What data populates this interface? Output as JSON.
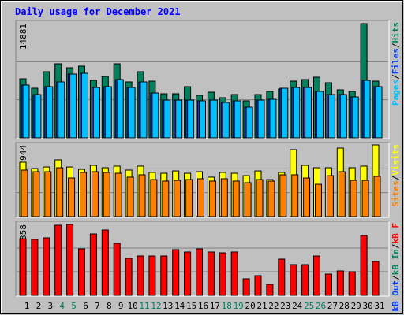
{
  "chart_data": [
    {
      "type": "bar",
      "title": "Daily usage for December 2021",
      "ylim": [
        0,
        14881
      ],
      "yticks": [
        14881
      ],
      "legend_separator": "/",
      "series": [
        {
          "name": "Hits",
          "color": "#00805c",
          "values": [
            7697,
            6465,
            8620,
            9647,
            9134,
            9339,
            7492,
            8005,
            9647,
            7287,
            8620,
            7389,
            5747,
            5747,
            6671,
            5542,
            5952,
            5234,
            5645,
            4823,
            5645,
            6055,
            6363,
            7389,
            7594,
            7902,
            7184,
            6260,
            6055,
            14881,
            7389
          ]
        },
        {
          "name": "Files",
          "color": "#0040ff",
          "values": [
            6874,
            5643,
            6669,
            7285,
            8311,
            8413,
            6566,
            6669,
            7592,
            6566,
            7285,
            5848,
            4925,
            4925,
            4925,
            4823,
            4925,
            4617,
            4823,
            4002,
            4925,
            5027,
            6464,
            6566,
            6566,
            6053,
            5643,
            5643,
            5335,
            7490,
            6669
          ]
        },
        {
          "name": "Pages",
          "color": "#00c0ff",
          "values": [
            6874,
            5643,
            6669,
            7285,
            8311,
            8413,
            6566,
            6669,
            7592,
            6566,
            7285,
            5848,
            4925,
            4925,
            4925,
            4823,
            4925,
            4617,
            4823,
            4002,
            4925,
            5027,
            6464,
            6566,
            6566,
            6053,
            5643,
            5643,
            5335,
            7490,
            6669
          ]
        }
      ]
    },
    {
      "type": "bar",
      "ylim": [
        0,
        944
      ],
      "yticks": [
        944
      ],
      "legend_separator": "/",
      "series": [
        {
          "name": "Visits",
          "color": "#ffff00",
          "values": [
            716,
            633,
            653,
            747,
            653,
            622,
            674,
            643,
            664,
            612,
            664,
            581,
            570,
            601,
            570,
            591,
            519,
            581,
            570,
            539,
            601,
            487,
            581,
            882,
            674,
            643,
            643,
            902,
            643,
            664,
            944
          ]
        },
        {
          "name": "Sites",
          "color": "#ff8000",
          "values": [
            612,
            591,
            591,
            643,
            508,
            581,
            591,
            581,
            570,
            519,
            550,
            487,
            467,
            477,
            487,
            498,
            467,
            498,
            467,
            446,
            487,
            467,
            550,
            550,
            508,
            425,
            539,
            591,
            477,
            477,
            529
          ]
        }
      ]
    },
    {
      "type": "bar",
      "ylim": [
        0,
        145358
      ],
      "yticks": [
        145358
      ],
      "legend_separator": "/",
      "categories": [
        "1",
        "2",
        "3",
        "4",
        "5",
        "6",
        "7",
        "8",
        "9",
        "10",
        "11",
        "12",
        "13",
        "14",
        "15",
        "16",
        "17",
        "18",
        "19",
        "20",
        "21",
        "22",
        "23",
        "24",
        "25",
        "26",
        "27",
        "28",
        "29",
        "30",
        "31"
      ],
      "category_colors": [
        "#000000",
        "#000000",
        "#000000",
        "#00805c",
        "#00805c",
        "#000000",
        "#000000",
        "#000000",
        "#000000",
        "#000000",
        "#00805c",
        "#00805c",
        "#000000",
        "#000000",
        "#000000",
        "#000000",
        "#000000",
        "#00805c",
        "#00805c",
        "#000000",
        "#000000",
        "#000000",
        "#000000",
        "#000000",
        "#00805c",
        "#00805c",
        "#000000",
        "#000000",
        "#000000",
        "#000000",
        "#000000"
      ],
      "series": [
        {
          "name": "kB F",
          "color": "#ff0000",
          "values": [
            116280,
            114665,
            117895,
            143735,
            145358,
            95285,
            125970,
            134045,
            106590,
            75905,
            80750,
            80750,
            80750,
            93670,
            88825,
            95285,
            88825,
            87210,
            88825,
            33915,
            40375,
            22610,
            74290,
            62985,
            62985,
            80750,
            43605,
            50065,
            48450,
            122740,
            69445
          ]
        },
        {
          "name": "kB In",
          "color": "#00805c",
          "values": [
            0,
            0,
            0,
            0,
            0,
            0,
            0,
            0,
            0,
            0,
            0,
            0,
            0,
            0,
            0,
            0,
            0,
            0,
            0,
            0,
            0,
            0,
            0,
            0,
            0,
            0,
            0,
            0,
            0,
            0,
            0
          ]
        },
        {
          "name": "kB Out",
          "color": "#0040ff",
          "values": [
            0,
            0,
            0,
            0,
            0,
            0,
            0,
            0,
            0,
            0,
            0,
            0,
            0,
            0,
            0,
            0,
            0,
            0,
            0,
            0,
            0,
            0,
            0,
            0,
            0,
            0,
            0,
            0,
            0,
            0,
            0
          ]
        }
      ]
    }
  ]
}
